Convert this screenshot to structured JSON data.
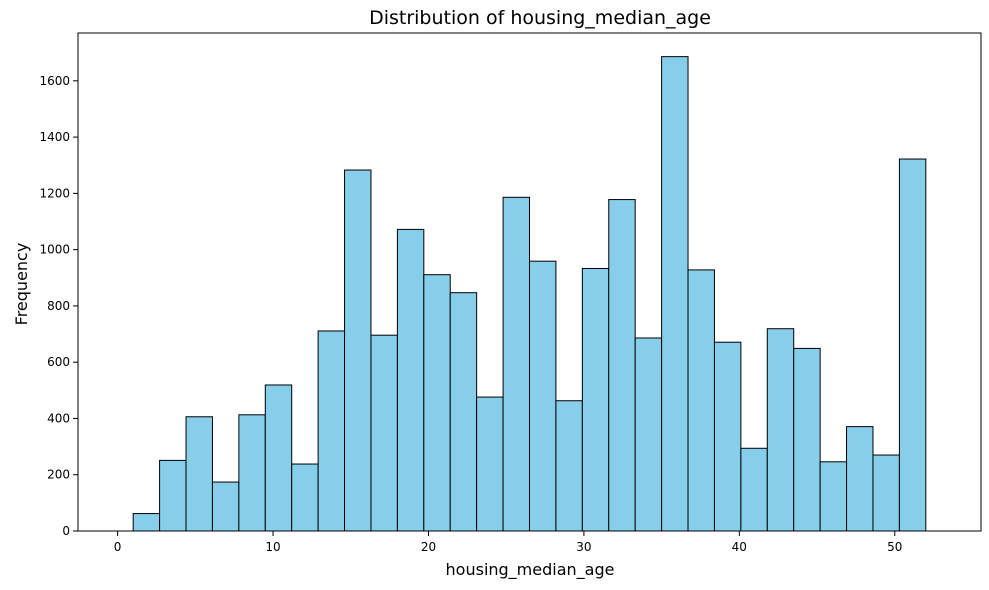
{
  "chart_data": {
    "type": "bar",
    "title": "Distribution of housing_median_age",
    "xlabel": "housing_median_age",
    "ylabel": "Frequency",
    "bar_color": "#87ceeb",
    "edge_color": "#000000",
    "bin_start": 1,
    "bin_end": 52,
    "bin_count": 30,
    "values": [
      62,
      251,
      406,
      174,
      413,
      519,
      238,
      711,
      1283,
      696,
      1072,
      911,
      847,
      476,
      1186,
      959,
      463,
      933,
      1178,
      686,
      1686,
      928,
      671,
      294,
      719,
      649,
      246,
      371,
      270,
      1322
    ],
    "xlim": [
      -2.55,
      55.55
    ],
    "ylim": [
      0,
      1770
    ],
    "xticks": [
      0,
      10,
      20,
      30,
      40,
      50
    ],
    "yticks": [
      0,
      200,
      400,
      600,
      800,
      1000,
      1200,
      1400,
      1600
    ],
    "grid": false
  }
}
